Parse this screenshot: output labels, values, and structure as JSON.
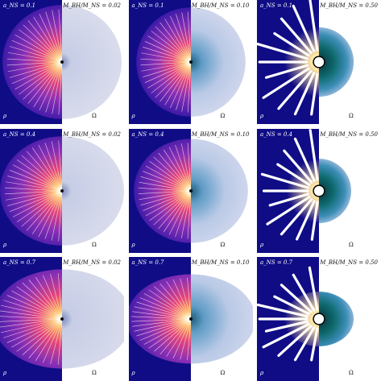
{
  "colors": {
    "background_left": "#0f0c86",
    "right_bg": "#ffffff",
    "omega_fill": "#d9dcec",
    "omega_dark": "#0a4a4a",
    "streamline": "#ffffff"
  },
  "axis_labels": {
    "rho": "ρ",
    "omega": "Ω"
  },
  "rows": [
    {
      "a_label": "a_NS = 0.1"
    },
    {
      "a_label": "a_NS = 0.4"
    },
    {
      "a_label": "a_NS = 0.7"
    }
  ],
  "cols": [
    {
      "mass_label": "M_BH/M_NS = 0.02"
    },
    {
      "mass_label": "M_BH/M_NS = 0.10"
    },
    {
      "mass_label": "M_BH/M_NS = 0.50"
    }
  ],
  "panels": [
    {
      "row": 0,
      "col": 0,
      "a_label": "a_NS = 0.1",
      "mass_label": "M_BH/M_NS = 0.02",
      "style": "small",
      "star_rx": 0.48,
      "star_ry": 0.46,
      "inner_r": 0.0,
      "omega_tint": 0.1
    },
    {
      "row": 0,
      "col": 1,
      "a_label": "a_NS = 0.1",
      "mass_label": "M_BH/M_NS = 0.10",
      "style": "mid",
      "star_rx": 0.44,
      "star_ry": 0.44,
      "inner_r": 0.0,
      "omega_tint": 0.5
    },
    {
      "row": 0,
      "col": 2,
      "a_label": "a_NS = 0.1",
      "mass_label": "M_BH/M_NS = 0.50",
      "style": "large",
      "star_rx": 0.28,
      "star_ry": 0.28,
      "inner_r": 0.04,
      "omega_tint": 1.0
    },
    {
      "row": 1,
      "col": 0,
      "a_label": "a_NS = 0.4",
      "mass_label": "M_BH/M_NS = 0.02",
      "style": "small",
      "star_rx": 0.5,
      "star_ry": 0.44,
      "inner_r": 0.0,
      "omega_tint": 0.1
    },
    {
      "row": 1,
      "col": 1,
      "a_label": "a_NS = 0.4",
      "mass_label": "M_BH/M_NS = 0.10",
      "style": "mid",
      "star_rx": 0.46,
      "star_ry": 0.42,
      "inner_r": 0.0,
      "omega_tint": 0.5
    },
    {
      "row": 1,
      "col": 2,
      "a_label": "a_NS = 0.4",
      "mass_label": "M_BH/M_NS = 0.50",
      "style": "large",
      "star_rx": 0.26,
      "star_ry": 0.26,
      "inner_r": 0.04,
      "omega_tint": 1.0
    },
    {
      "row": 2,
      "col": 0,
      "a_label": "a_NS = 0.7",
      "mass_label": "M_BH/M_NS = 0.02",
      "style": "small",
      "star_rx": 0.56,
      "star_ry": 0.4,
      "inner_r": 0.0,
      "omega_tint": 0.1
    },
    {
      "row": 2,
      "col": 1,
      "a_label": "a_NS = 0.7",
      "mass_label": "M_BH/M_NS = 0.10",
      "style": "mid",
      "star_rx": 0.52,
      "star_ry": 0.36,
      "inner_r": 0.0,
      "omega_tint": 0.5
    },
    {
      "row": 2,
      "col": 2,
      "a_label": "a_NS = 0.7",
      "mass_label": "M_BH/M_NS = 0.50",
      "style": "large",
      "star_rx": 0.28,
      "star_ry": 0.22,
      "inner_r": 0.04,
      "omega_tint": 1.0
    }
  ]
}
